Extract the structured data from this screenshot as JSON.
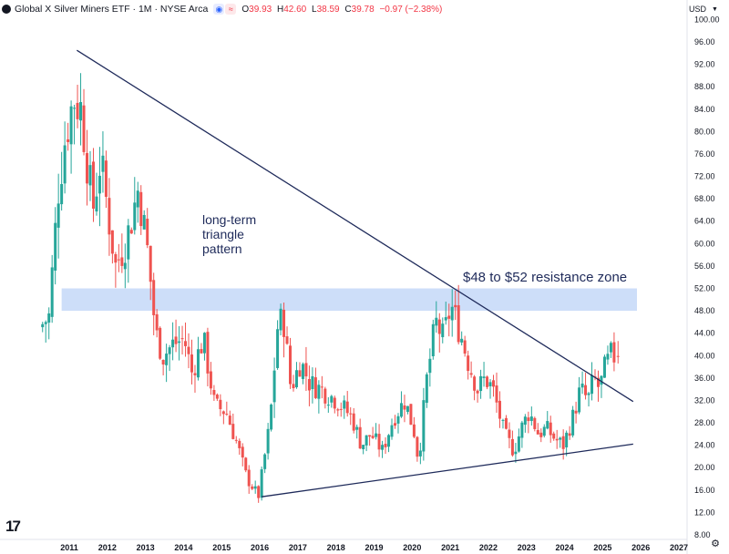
{
  "header": {
    "title": "Global X Silver Miners ETF · 1M · NYSE Arca",
    "ohlc": [
      {
        "label": "O",
        "value": "39.93"
      },
      {
        "label": "H",
        "value": "42.60"
      },
      {
        "label": "L",
        "value": "38.59"
      },
      {
        "label": "C",
        "value": "39.78"
      },
      {
        "label": "",
        "value": "−0.97 (−2.38%)"
      }
    ],
    "currency": "USD"
  },
  "icons": {
    "logo": "tradingview-logo-icon",
    "settings": "gear-icon",
    "badges": [
      "eye-icon",
      "approximately-icon"
    ]
  },
  "colors": {
    "up": "#26a69a",
    "down": "#ef5350",
    "trendline": "#1e2a5a",
    "zone": "#bcd3f7"
  },
  "chart_data": {
    "type": "candlestick",
    "title": "Global X Silver Miners ETF · 1M · NYSE Arca",
    "ylim": [
      8,
      100
    ],
    "yticks": [
      "100.00",
      "96.00",
      "92.00",
      "88.00",
      "84.00",
      "80.00",
      "76.00",
      "72.00",
      "68.00",
      "64.00",
      "60.00",
      "56.00",
      "52.00",
      "48.00",
      "44.00",
      "40.00",
      "36.00",
      "32.00",
      "28.00",
      "24.00",
      "20.00",
      "16.00",
      "12.00",
      "8.00"
    ],
    "xticks": [
      "2011",
      "2012",
      "2013",
      "2014",
      "2015",
      "2016",
      "2017",
      "2018",
      "2019",
      "2020",
      "2021",
      "2022",
      "2023",
      "2024",
      "2025",
      "2026",
      "2027"
    ],
    "xlim": [
      2010.2,
      2027.6
    ],
    "grid": false,
    "anchors": [
      [
        2010.3,
        45
      ],
      [
        2010.55,
        47
      ],
      [
        2010.8,
        70
      ],
      [
        2011.0,
        80
      ],
      [
        2011.2,
        86
      ],
      [
        2011.4,
        84
      ],
      [
        2011.7,
        66
      ],
      [
        2011.9,
        75
      ],
      [
        2012.3,
        56
      ],
      [
        2012.6,
        61
      ],
      [
        2012.9,
        70
      ],
      [
        2013.15,
        58
      ],
      [
        2013.35,
        44
      ],
      [
        2013.55,
        40
      ],
      [
        2013.8,
        42
      ],
      [
        2014.1,
        43
      ],
      [
        2014.3,
        37
      ],
      [
        2014.6,
        43
      ],
      [
        2014.9,
        31
      ],
      [
        2015.2,
        30
      ],
      [
        2015.5,
        24
      ],
      [
        2015.75,
        18
      ],
      [
        2016.05,
        15
      ],
      [
        2016.35,
        28
      ],
      [
        2016.55,
        45
      ],
      [
        2016.7,
        47
      ],
      [
        2016.9,
        34
      ],
      [
        2017.15,
        39
      ],
      [
        2017.4,
        35
      ],
      [
        2017.7,
        34
      ],
      [
        2018.1,
        32
      ],
      [
        2018.5,
        29
      ],
      [
        2018.75,
        24
      ],
      [
        2019.0,
        26
      ],
      [
        2019.3,
        23
      ],
      [
        2019.6,
        29
      ],
      [
        2019.9,
        32
      ],
      [
        2020.15,
        26
      ],
      [
        2020.25,
        21
      ],
      [
        2020.45,
        35
      ],
      [
        2020.7,
        46
      ],
      [
        2020.9,
        43
      ],
      [
        2021.1,
        49
      ],
      [
        2021.35,
        44
      ],
      [
        2021.55,
        39
      ],
      [
        2021.8,
        34
      ],
      [
        2022.0,
        36
      ],
      [
        2022.2,
        34
      ],
      [
        2022.5,
        26
      ],
      [
        2022.75,
        23
      ],
      [
        2022.95,
        27
      ],
      [
        2023.15,
        30
      ],
      [
        2023.4,
        26
      ],
      [
        2023.6,
        27
      ],
      [
        2023.85,
        25
      ],
      [
        2024.05,
        24
      ],
      [
        2024.3,
        29
      ],
      [
        2024.5,
        34
      ],
      [
        2024.7,
        32
      ],
      [
        2024.85,
        36
      ],
      [
        2025.0,
        34
      ],
      [
        2025.15,
        38
      ],
      [
        2025.3,
        40
      ],
      [
        2025.4,
        39.8
      ]
    ],
    "last_candle": {
      "open": 39.93,
      "high": 42.6,
      "low": 38.59,
      "close": 39.78
    },
    "trendlines": [
      {
        "from": [
          2011.2,
          94.5
        ],
        "to": [
          2025.8,
          31.8
        ]
      },
      {
        "from": [
          2016.05,
          14.8
        ],
        "to": [
          2025.8,
          24.2
        ]
      }
    ],
    "zone": {
      "from": 48,
      "to": 52,
      "x_start": 2010.8,
      "x_end": 2025.9
    },
    "annotations": {
      "pattern": [
        "long-term",
        "triangle",
        "pattern"
      ],
      "zone_label": "$48 to $52 resistance zone"
    }
  }
}
